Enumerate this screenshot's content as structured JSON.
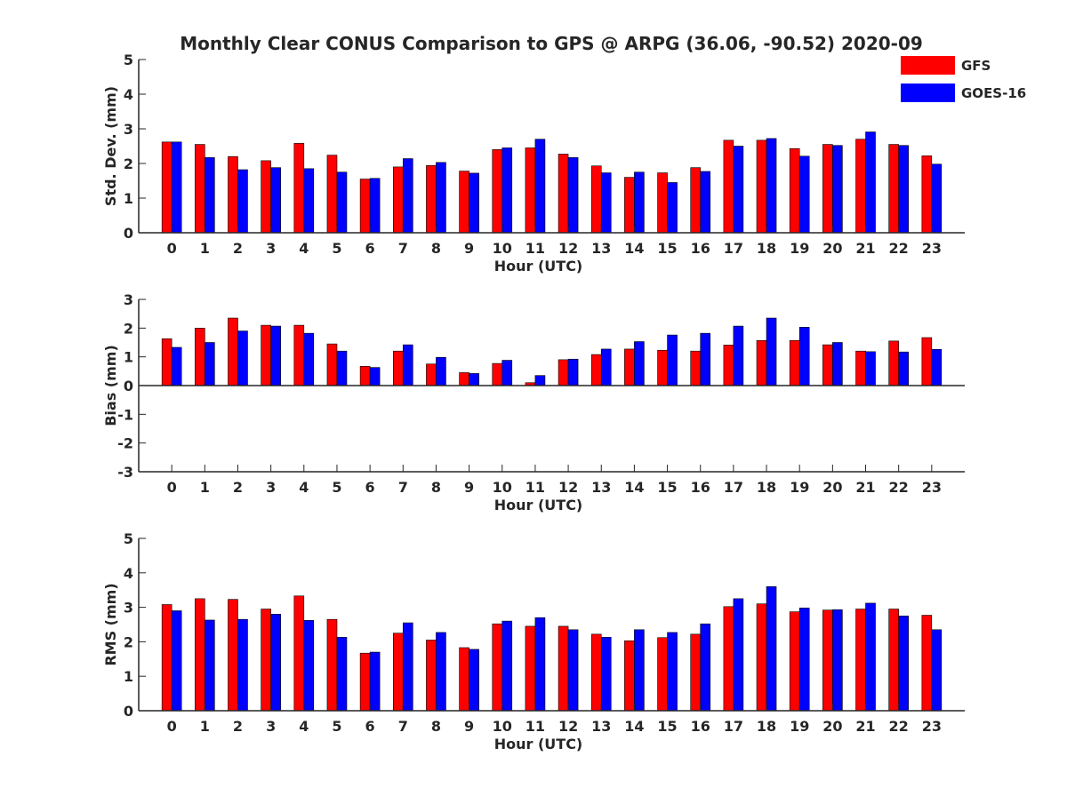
{
  "title": "Monthly Clear CONUS Comparison to GPS @ ARPG (36.06, -90.52) 2020-09",
  "legend": [
    {
      "name": "GFS",
      "color": "#ff0000"
    },
    {
      "name": "GOES-16",
      "color": "#0000ff"
    }
  ],
  "chart_data": [
    {
      "type": "bar",
      "xlabel": "Hour (UTC)",
      "ylabel": "Std. Dev. (mm)",
      "ylim": [
        0,
        5
      ],
      "yticks": [
        0,
        1,
        2,
        3,
        4,
        5
      ],
      "categories": [
        "0",
        "1",
        "2",
        "3",
        "4",
        "5",
        "6",
        "7",
        "8",
        "9",
        "10",
        "11",
        "12",
        "13",
        "14",
        "15",
        "16",
        "17",
        "18",
        "19",
        "20",
        "21",
        "22",
        "23"
      ],
      "series": [
        {
          "name": "GFS",
          "color": "#ff0000",
          "values": [
            2.62,
            2.55,
            2.2,
            2.08,
            2.58,
            2.24,
            1.55,
            1.9,
            1.94,
            1.78,
            2.4,
            2.45,
            2.27,
            1.93,
            1.6,
            1.73,
            1.88,
            2.67,
            2.67,
            2.43,
            2.55,
            2.7,
            2.55,
            2.22
          ]
        },
        {
          "name": "GOES-16",
          "color": "#0000ff",
          "values": [
            2.62,
            2.17,
            1.82,
            1.88,
            1.85,
            1.75,
            1.57,
            2.14,
            2.03,
            1.72,
            2.45,
            2.7,
            2.17,
            1.73,
            1.75,
            1.45,
            1.77,
            2.5,
            2.72,
            2.21,
            2.52,
            2.91,
            2.52,
            1.98
          ]
        }
      ]
    },
    {
      "type": "bar",
      "xlabel": "Hour (UTC)",
      "ylabel": "Bias (mm)",
      "ylim": [
        -3,
        3
      ],
      "yticks": [
        -3,
        -2,
        -1,
        0,
        1,
        2,
        3
      ],
      "categories": [
        "0",
        "1",
        "2",
        "3",
        "4",
        "5",
        "6",
        "7",
        "8",
        "9",
        "10",
        "11",
        "12",
        "13",
        "14",
        "15",
        "16",
        "17",
        "18",
        "19",
        "20",
        "21",
        "22",
        "23"
      ],
      "series": [
        {
          "name": "GFS",
          "color": "#ff0000",
          "values": [
            1.63,
            2.0,
            2.35,
            2.1,
            2.1,
            1.45,
            0.67,
            1.2,
            0.75,
            0.45,
            0.77,
            0.1,
            0.9,
            1.08,
            1.27,
            1.23,
            1.2,
            1.41,
            1.57,
            1.57,
            1.42,
            1.2,
            1.55,
            1.67
          ]
        },
        {
          "name": "GOES-16",
          "color": "#0000ff",
          "values": [
            1.33,
            1.5,
            1.9,
            2.07,
            1.82,
            1.2,
            0.63,
            1.42,
            0.98,
            0.42,
            0.88,
            0.35,
            0.92,
            1.27,
            1.53,
            1.76,
            1.82,
            2.07,
            2.35,
            2.03,
            1.5,
            1.18,
            1.17,
            1.26
          ]
        }
      ]
    },
    {
      "type": "bar",
      "xlabel": "Hour (UTC)",
      "ylabel": "RMS (mm)",
      "ylim": [
        0,
        5
      ],
      "yticks": [
        0,
        1,
        2,
        3,
        4,
        5
      ],
      "categories": [
        "0",
        "1",
        "2",
        "3",
        "4",
        "5",
        "6",
        "7",
        "8",
        "9",
        "10",
        "11",
        "12",
        "13",
        "14",
        "15",
        "16",
        "17",
        "18",
        "19",
        "20",
        "21",
        "22",
        "23"
      ],
      "series": [
        {
          "name": "GFS",
          "color": "#ff0000",
          "values": [
            3.08,
            3.25,
            3.23,
            2.95,
            3.33,
            2.65,
            1.67,
            2.25,
            2.05,
            1.83,
            2.52,
            2.45,
            2.45,
            2.22,
            2.03,
            2.12,
            2.22,
            3.02,
            3.1,
            2.87,
            2.92,
            2.95,
            2.95,
            2.77
          ]
        },
        {
          "name": "GOES-16",
          "color": "#0000ff",
          "values": [
            2.9,
            2.63,
            2.65,
            2.8,
            2.62,
            2.13,
            1.7,
            2.55,
            2.27,
            1.78,
            2.6,
            2.7,
            2.35,
            2.13,
            2.35,
            2.27,
            2.52,
            3.25,
            3.6,
            2.98,
            2.93,
            3.12,
            2.75,
            2.35
          ]
        }
      ]
    }
  ]
}
